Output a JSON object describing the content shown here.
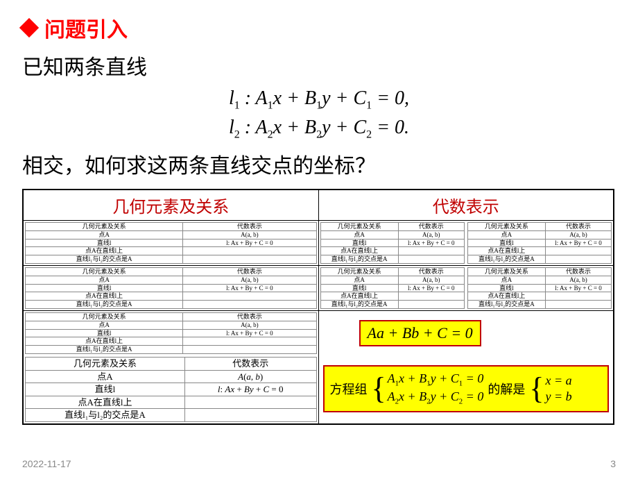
{
  "header": {
    "title": "问题引入"
  },
  "intro": "已知两条直线",
  "eq1": "l₁ : A₁x + B₁y + C₁ = 0,",
  "eq2": "l₂ : A₂x + B₂y + C₂ = 0.",
  "question": "相交，如何求这两条直线交点的坐标？",
  "table": {
    "head_left": "几何元素及关系",
    "head_right": "代数表示",
    "mini": {
      "h1": "几何元素及关系",
      "h2": "代数表示",
      "r1a": "点A",
      "r1b": "A(a, b)",
      "r2a": "直线l",
      "r2b": "l: Ax + By + C = 0",
      "r3a": "点A在直线l上",
      "r3b": "",
      "r4a": "直线l₁与l₂的交点是A",
      "r4b": ""
    }
  },
  "yellow1": "Aa + Bb + C = 0",
  "yellow2": {
    "pre": "方程组",
    "sys1": "A₁x + B₁y + C₁ = 0",
    "sys2": "A₂x + B₂y + C₂ = 0",
    "mid": "的解是",
    "sol1": "x = a",
    "sol2": "y = b"
  },
  "footer": {
    "date": "2022-11-17",
    "page": "3"
  }
}
